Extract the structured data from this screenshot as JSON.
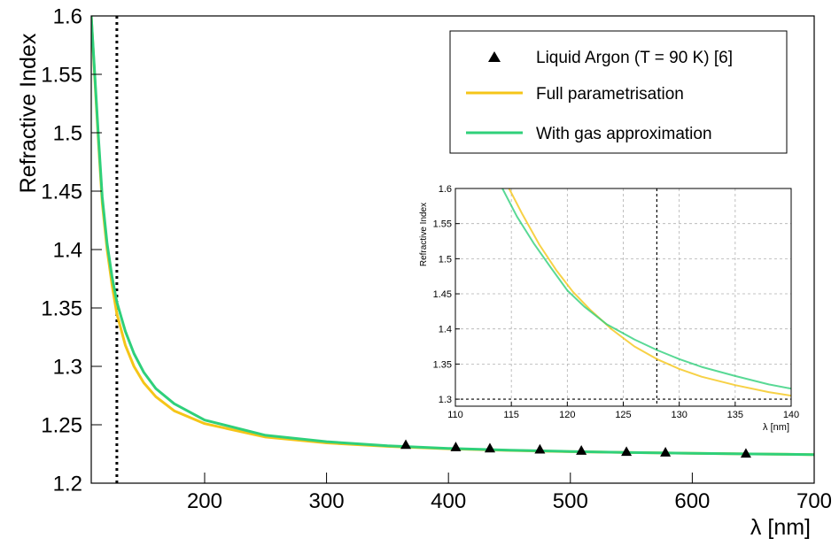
{
  "chart_data": [
    {
      "type": "line",
      "xlabel": "λ [nm]",
      "ylabel": "Refractive Index",
      "xlim": [
        107,
        700
      ],
      "ylim": [
        1.2,
        1.6
      ],
      "x_ticks": [
        200,
        300,
        400,
        500,
        600,
        700
      ],
      "y_ticks": [
        1.2,
        1.25,
        1.3,
        1.35,
        1.4,
        1.45,
        1.5,
        1.55,
        1.6
      ],
      "x_tick_labels": [
        "200",
        "300",
        "400",
        "500",
        "600",
        "700"
      ],
      "y_tick_labels": [
        "1.2",
        "1.25",
        "1.3",
        "1.35",
        "1.4",
        "1.45",
        "1.5",
        "1.55",
        "1.6"
      ],
      "grid": false,
      "legend_position": "top-right",
      "reference_line_x": 128,
      "series": [
        {
          "name": "Liquid Argon (T = 90 K) [6]",
          "kind": "points",
          "color": "#000000",
          "x": [
            365,
            406,
            434,
            475,
            509,
            546,
            578,
            644
          ],
          "y": [
            1.233,
            1.231,
            1.23,
            1.229,
            1.228,
            1.227,
            1.2265,
            1.2255
          ]
        },
        {
          "name": "Full parametrisation",
          "kind": "line",
          "color": "#f5c518",
          "x": [
            107,
            110,
            113,
            116,
            120,
            124,
            128,
            135,
            142,
            150,
            160,
            175,
            200,
            250,
            300,
            350,
            400,
            450,
            500,
            550,
            600,
            650,
            700
          ],
          "y": [
            1.6,
            1.545,
            1.49,
            1.44,
            1.4,
            1.37,
            1.345,
            1.318,
            1.3,
            1.286,
            1.274,
            1.262,
            1.251,
            1.2395,
            1.2345,
            1.2315,
            1.2295,
            1.228,
            1.227,
            1.2262,
            1.2255,
            1.225,
            1.2245
          ]
        },
        {
          "name": "With gas approximation",
          "kind": "line",
          "color": "#2fd07a",
          "x": [
            107,
            110,
            113,
            116,
            120,
            124,
            128,
            135,
            142,
            150,
            160,
            175,
            200,
            250,
            300,
            350,
            400,
            450,
            500,
            550,
            600,
            650,
            700
          ],
          "y": [
            1.6,
            1.548,
            1.494,
            1.445,
            1.405,
            1.377,
            1.355,
            1.33,
            1.311,
            1.295,
            1.281,
            1.268,
            1.254,
            1.241,
            1.2355,
            1.232,
            1.2298,
            1.2282,
            1.2271,
            1.2262,
            1.2255,
            1.225,
            1.2245
          ]
        }
      ]
    },
    {
      "type": "line",
      "xlabel": "λ [nm]",
      "ylabel": "Refractive Index",
      "xlim": [
        110,
        140
      ],
      "ylim": [
        1.29,
        1.6
      ],
      "x_ticks": [
        110,
        115,
        120,
        125,
        130,
        135,
        140
      ],
      "y_ticks": [
        1.3,
        1.35,
        1.4,
        1.45,
        1.5,
        1.55,
        1.6
      ],
      "x_tick_labels": [
        "110",
        "115",
        "120",
        "125",
        "130",
        "135",
        "140"
      ],
      "y_tick_labels": [
        "1.3",
        "1.35",
        "1.4",
        "1.45",
        "1.5",
        "1.55",
        "1.6"
      ],
      "grid": true,
      "reference_line_x": 128,
      "reference_line_y": 1.3,
      "series": [
        {
          "name": "Full parametrisation",
          "kind": "line",
          "color": "#f5c518",
          "x": [
            114.8,
            116,
            117.5,
            119,
            120.5,
            122,
            124,
            126,
            128,
            130,
            132,
            135,
            138,
            140
          ],
          "y": [
            1.6,
            1.563,
            1.52,
            1.484,
            1.453,
            1.428,
            1.399,
            1.375,
            1.357,
            1.343,
            1.332,
            1.32,
            1.31,
            1.305
          ]
        },
        {
          "name": "With gas approximation",
          "kind": "line",
          "color": "#2fd07a",
          "x": [
            114.2,
            115.5,
            117,
            118.5,
            120,
            121.5,
            123.5,
            126,
            128,
            130,
            132,
            135,
            138,
            140
          ],
          "y": [
            1.6,
            1.56,
            1.522,
            1.488,
            1.455,
            1.432,
            1.407,
            1.385,
            1.37,
            1.357,
            1.346,
            1.333,
            1.321,
            1.315
          ]
        }
      ]
    }
  ]
}
